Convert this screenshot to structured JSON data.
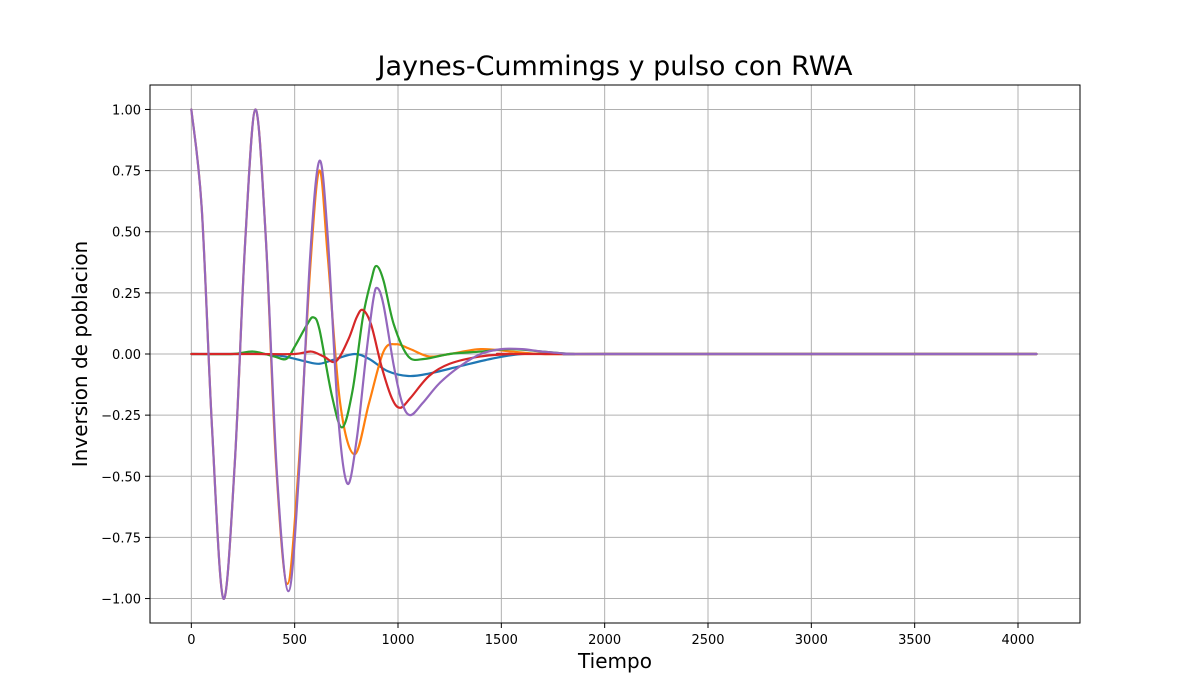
{
  "chart_data": {
    "type": "line",
    "title": "Jaynes-Cummings y pulso con RWA",
    "xlabel": "Tiempo",
    "ylabel": "Inversion de poblacion",
    "xlim": [
      -200,
      4300
    ],
    "ylim": [
      -1.1,
      1.1
    ],
    "xticks": [
      0,
      500,
      1000,
      1500,
      2000,
      2500,
      3000,
      3500,
      4000
    ],
    "xtick_labels": [
      "0",
      "500",
      "1000",
      "1500",
      "2000",
      "2500",
      "3000",
      "3500",
      "4000"
    ],
    "yticks": [
      -1.0,
      -0.75,
      -0.5,
      -0.25,
      0.0,
      0.25,
      0.5,
      0.75,
      1.0
    ],
    "ytick_labels": [
      "−1.00",
      "−0.75",
      "−0.50",
      "−0.25",
      "0.00",
      "0.25",
      "0.50",
      "0.75",
      "1.00"
    ],
    "grid": true,
    "legend": "none",
    "series": [
      {
        "color": "#1f77b4",
        "points": [
          [
            0,
            0
          ],
          [
            200,
            0
          ],
          [
            350,
            0
          ],
          [
            450,
            -0.01
          ],
          [
            550,
            -0.03
          ],
          [
            620,
            -0.04
          ],
          [
            700,
            -0.02
          ],
          [
            790,
            0
          ],
          [
            860,
            -0.02
          ],
          [
            950,
            -0.07
          ],
          [
            1050,
            -0.09
          ],
          [
            1150,
            -0.08
          ],
          [
            1300,
            -0.05
          ],
          [
            1450,
            -0.02
          ],
          [
            1600,
            0
          ],
          [
            1800,
            0
          ],
          [
            2000,
            0
          ],
          [
            4090,
            0
          ]
        ]
      },
      {
        "color": "#ff7f0e",
        "points": [
          [
            0,
            1
          ],
          [
            50,
            0.6
          ],
          [
            100,
            -0.3
          ],
          [
            155,
            -1
          ],
          [
            210,
            -0.45
          ],
          [
            260,
            0.45
          ],
          [
            310,
            1
          ],
          [
            360,
            0.48
          ],
          [
            410,
            -0.45
          ],
          [
            465,
            -0.94
          ],
          [
            520,
            -0.45
          ],
          [
            575,
            0.35
          ],
          [
            620,
            0.75
          ],
          [
            660,
            0.4
          ],
          [
            720,
            -0.2
          ],
          [
            790,
            -0.41
          ],
          [
            860,
            -0.2
          ],
          [
            930,
            0.01
          ],
          [
            990,
            0.04
          ],
          [
            1060,
            0.02
          ],
          [
            1150,
            -0.01
          ],
          [
            1250,
            0
          ],
          [
            1400,
            0.02
          ],
          [
            1550,
            0.01
          ],
          [
            1700,
            0
          ],
          [
            2000,
            0
          ],
          [
            4090,
            0
          ]
        ]
      },
      {
        "color": "#2ca02c",
        "points": [
          [
            0,
            0
          ],
          [
            200,
            0
          ],
          [
            300,
            0.01
          ],
          [
            400,
            -0.01
          ],
          [
            460,
            -0.02
          ],
          [
            500,
            0.03
          ],
          [
            560,
            0.12
          ],
          [
            590,
            0.15
          ],
          [
            620,
            0.1
          ],
          [
            680,
            -0.17
          ],
          [
            730,
            -0.3
          ],
          [
            780,
            -0.15
          ],
          [
            830,
            0.15
          ],
          [
            870,
            0.3
          ],
          [
            895,
            0.36
          ],
          [
            930,
            0.3
          ],
          [
            980,
            0.12
          ],
          [
            1050,
            -0.01
          ],
          [
            1130,
            -0.02
          ],
          [
            1250,
            0
          ],
          [
            1400,
            0.01
          ],
          [
            1550,
            0.02
          ],
          [
            1700,
            0.01
          ],
          [
            1850,
            0
          ],
          [
            2000,
            0
          ],
          [
            4090,
            0
          ]
        ]
      },
      {
        "color": "#d62728",
        "points": [
          [
            0,
            0
          ],
          [
            300,
            0
          ],
          [
            500,
            0
          ],
          [
            580,
            0.01
          ],
          [
            640,
            -0.01
          ],
          [
            700,
            -0.03
          ],
          [
            760,
            0.06
          ],
          [
            800,
            0.15
          ],
          [
            830,
            0.18
          ],
          [
            870,
            0.12
          ],
          [
            920,
            -0.05
          ],
          [
            970,
            -0.18
          ],
          [
            1010,
            -0.22
          ],
          [
            1060,
            -0.18
          ],
          [
            1150,
            -0.09
          ],
          [
            1250,
            -0.04
          ],
          [
            1400,
            -0.01
          ],
          [
            1550,
            0
          ],
          [
            1700,
            0
          ],
          [
            4090,
            0
          ]
        ]
      },
      {
        "color": "#9467bd",
        "points": [
          [
            0,
            1
          ],
          [
            50,
            0.6
          ],
          [
            100,
            -0.3
          ],
          [
            155,
            -1
          ],
          [
            210,
            -0.45
          ],
          [
            260,
            0.45
          ],
          [
            310,
            1
          ],
          [
            360,
            0.48
          ],
          [
            415,
            -0.5
          ],
          [
            470,
            -0.97
          ],
          [
            520,
            -0.5
          ],
          [
            575,
            0.4
          ],
          [
            620,
            0.79
          ],
          [
            660,
            0.48
          ],
          [
            710,
            -0.25
          ],
          [
            755,
            -0.53
          ],
          [
            800,
            -0.35
          ],
          [
            845,
            -0.01
          ],
          [
            880,
            0.22
          ],
          [
            900,
            0.27
          ],
          [
            930,
            0.2
          ],
          [
            980,
            -0.05
          ],
          [
            1020,
            -0.2
          ],
          [
            1060,
            -0.25
          ],
          [
            1120,
            -0.2
          ],
          [
            1200,
            -0.12
          ],
          [
            1300,
            -0.05
          ],
          [
            1400,
            0
          ],
          [
            1500,
            0.02
          ],
          [
            1600,
            0.02
          ],
          [
            1700,
            0.01
          ],
          [
            1850,
            0
          ],
          [
            2000,
            0
          ],
          [
            4090,
            0
          ]
        ]
      }
    ]
  }
}
